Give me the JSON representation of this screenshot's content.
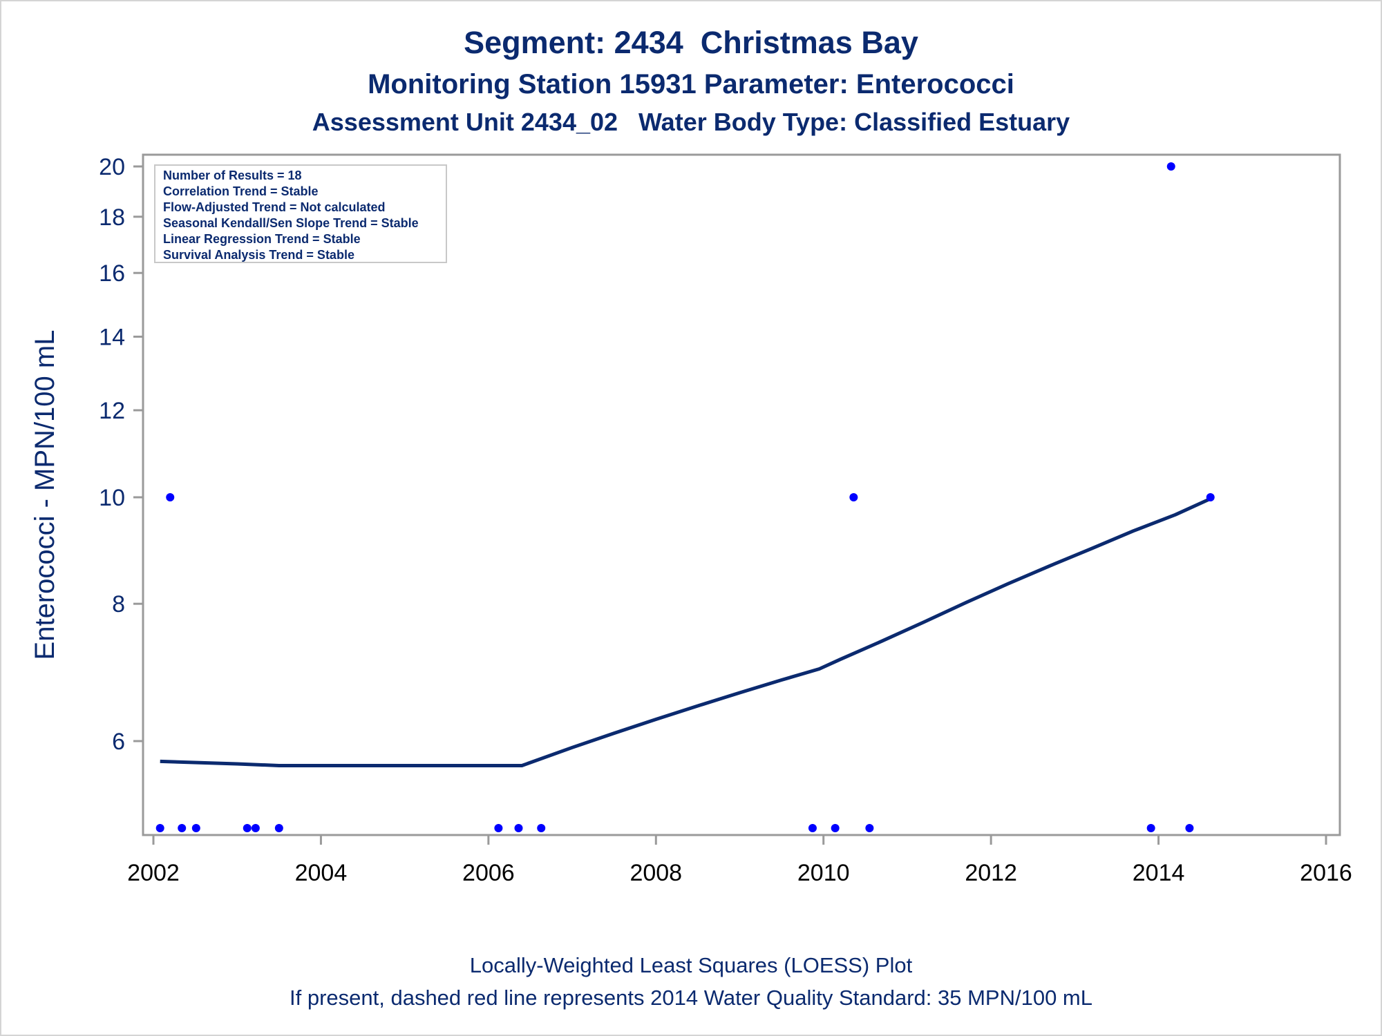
{
  "header": {
    "title": "Segment: 2434  Christmas Bay",
    "subtitle1": "Monitoring Station 15931 Parameter: Enterococci",
    "subtitle2": "Assessment Unit 2434_02   Water Body Type: Classified Estuary"
  },
  "footer": {
    "line1": "Locally-Weighted Least Squares (LOESS) Plot",
    "line2": "If present, dashed red line represents 2014 Water Quality Standard: 35 MPN/100 mL"
  },
  "inset": {
    "lines": [
      "Number of Results = 18",
      "Correlation Trend = Stable",
      "Flow-Adjusted Trend = Not calculated",
      "Seasonal Kendall/Sen Slope Trend = Stable",
      "Linear Regression Trend = Stable",
      "Survival Analysis Trend = Stable"
    ]
  },
  "colors": {
    "text": "#0b2a6f",
    "points": "#0000ff",
    "loess": "#0b2a6f",
    "axis": "#9a9a9a"
  },
  "chart_data": {
    "type": "scatter",
    "ylabel": "Enterococci - MPN/100 mL",
    "xlabel": "",
    "y_scale": "log",
    "xlim": [
      2002,
      2016
    ],
    "ylim": [
      5.0,
      20.4
    ],
    "x_ticks": [
      2002,
      2004,
      2006,
      2008,
      2010,
      2012,
      2014,
      2016
    ],
    "y_ticks": [
      6,
      8,
      10,
      12,
      14,
      16,
      18,
      20
    ],
    "grid": false,
    "points": [
      {
        "x": 2002.08,
        "y": 5.0
      },
      {
        "x": 2002.2,
        "y": 10
      },
      {
        "x": 2002.34,
        "y": 5.0
      },
      {
        "x": 2002.51,
        "y": 5.0
      },
      {
        "x": 2003.12,
        "y": 5.0
      },
      {
        "x": 2003.22,
        "y": 5.0
      },
      {
        "x": 2003.5,
        "y": 5.0
      },
      {
        "x": 2006.12,
        "y": 5.0
      },
      {
        "x": 2006.36,
        "y": 5.0
      },
      {
        "x": 2006.63,
        "y": 5.0
      },
      {
        "x": 2009.87,
        "y": 5.0
      },
      {
        "x": 2010.14,
        "y": 5.0
      },
      {
        "x": 2010.36,
        "y": 10
      },
      {
        "x": 2010.55,
        "y": 5.0
      },
      {
        "x": 2013.91,
        "y": 5.0
      },
      {
        "x": 2014.15,
        "y": 20
      },
      {
        "x": 2014.37,
        "y": 5.0
      },
      {
        "x": 2014.62,
        "y": 10
      }
    ],
    "series": [
      {
        "type": "line",
        "values": [
          [
            2002.08,
            5.75
          ],
          [
            2003.0,
            5.72
          ],
          [
            2003.5,
            5.7
          ],
          [
            2004.5,
            5.7
          ],
          [
            2005.5,
            5.7
          ],
          [
            2006.4,
            5.7
          ],
          [
            2007.0,
            5.92
          ],
          [
            2007.5,
            6.1
          ],
          [
            2008.0,
            6.28
          ],
          [
            2008.5,
            6.46
          ],
          [
            2009.0,
            6.64
          ],
          [
            2009.5,
            6.82
          ],
          [
            2009.95,
            6.98
          ],
          [
            2010.2,
            7.12
          ],
          [
            2010.7,
            7.4
          ],
          [
            2011.2,
            7.7
          ],
          [
            2011.7,
            8.02
          ],
          [
            2012.2,
            8.34
          ],
          [
            2012.7,
            8.66
          ],
          [
            2013.2,
            8.98
          ],
          [
            2013.7,
            9.32
          ],
          [
            2014.2,
            9.64
          ],
          [
            2014.62,
            9.97
          ]
        ]
      }
    ]
  }
}
